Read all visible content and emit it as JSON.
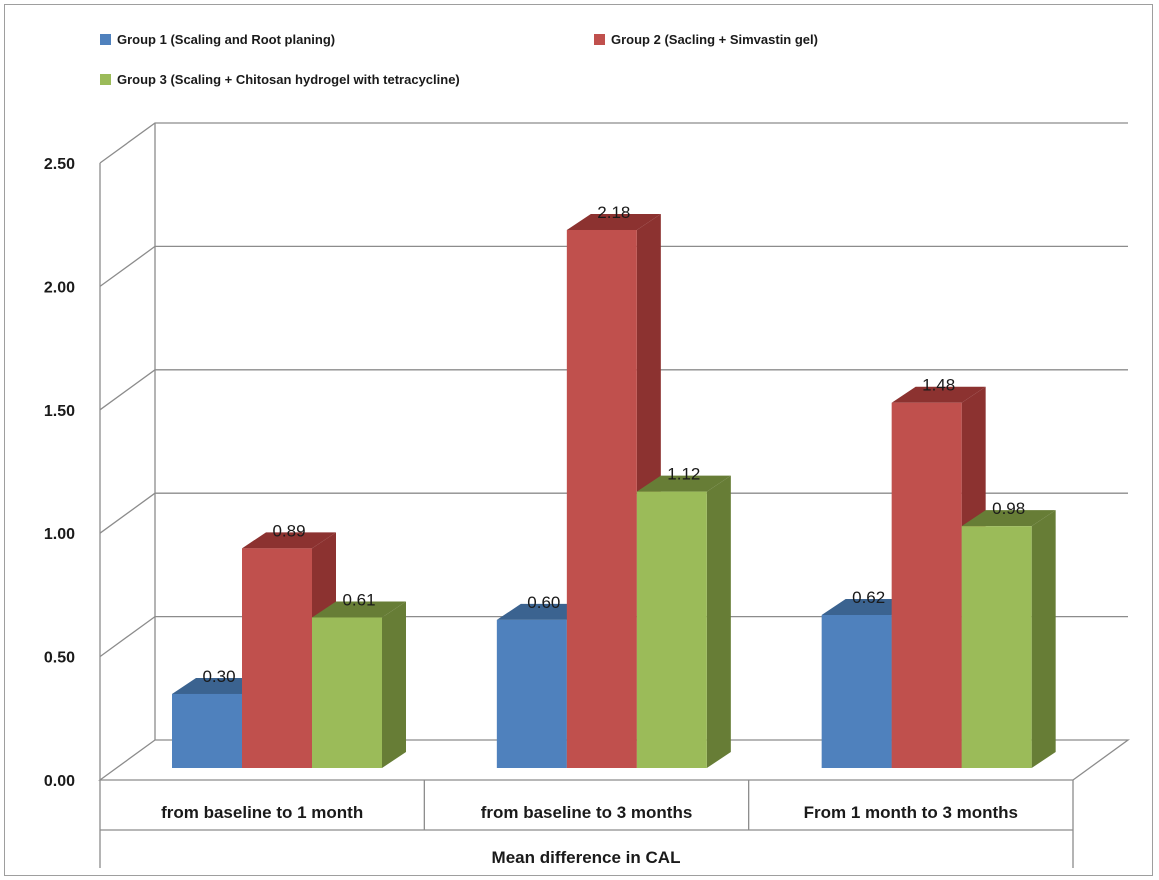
{
  "chart_data": {
    "type": "bar",
    "title": "",
    "categories": [
      "from baseline to 1 month",
      "from baseline to 3 months",
      "From 1 month to 3 months"
    ],
    "xlabel": "Mean difference in CAL",
    "ylabel": "",
    "ylim": [
      0,
      2.5
    ],
    "yticks": [
      "0.00",
      "0.50",
      "1.00",
      "1.50",
      "2.00",
      "2.50"
    ],
    "grid": true,
    "legend_position": "top",
    "series": [
      {
        "name": "Group 1 (Scaling and Root planing)",
        "values": [
          0.3,
          0.6,
          0.62
        ],
        "labels": [
          "0.30",
          "0.60",
          "0.62"
        ],
        "color": "#4f81bd"
      },
      {
        "name": "Group 2 (Sacling + Simvastin gel)",
        "values": [
          0.89,
          2.18,
          1.48
        ],
        "labels": [
          "0.89",
          "2.18",
          "1.48"
        ],
        "color": "#c0504d"
      },
      {
        "name": "Group 3 (Scaling + Chitosan hydrogel with tetracycline)",
        "values": [
          0.61,
          1.12,
          0.98
        ],
        "labels": [
          "0.61",
          "1.12",
          "0.98"
        ],
        "color": "#9bbb59"
      }
    ]
  },
  "colors": {
    "group1_side": "#3b6390",
    "group2_side": "#8c3230",
    "group3_side": "#677d36",
    "grid": "#8c8c8c"
  }
}
